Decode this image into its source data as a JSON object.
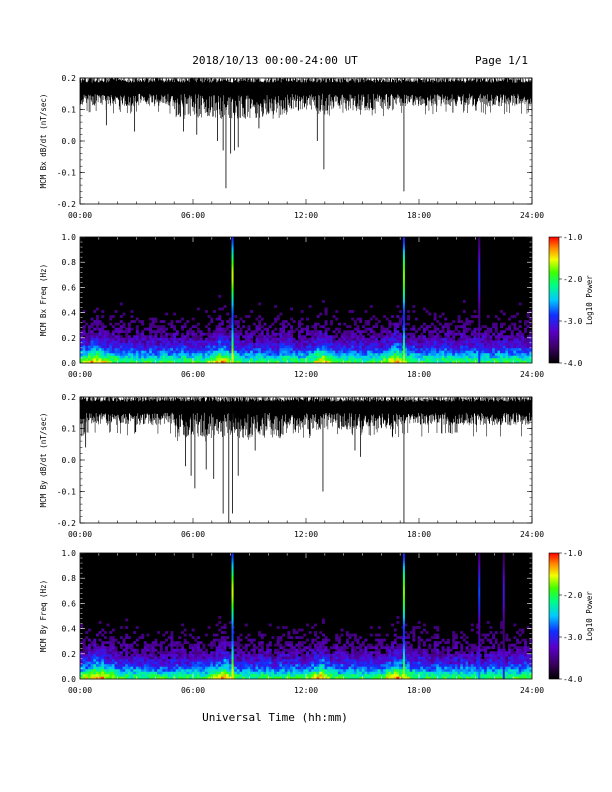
{
  "header": {
    "title": "2018/10/13  00:00-24:00 UT",
    "page": "Page 1/1"
  },
  "xlabel": "Universal Time (hh:mm)",
  "colors": {
    "background": "#ffffff",
    "spectrogram_background": "#000000",
    "trace": "#000000"
  },
  "chart_data": [
    {
      "type": "line",
      "title": "",
      "ylabel": "MCM Bx dB/dt (nT/sec)",
      "xlim": [
        0,
        24
      ],
      "ylim": [
        -0.2,
        0.2
      ],
      "x_ticks": [
        "00:00",
        "06:00",
        "12:00",
        "18:00",
        "24:00"
      ],
      "y_ticks": [
        "0.2",
        "0.1",
        "0.0",
        "-0.1",
        "-0.2"
      ],
      "baseline": 0.165,
      "noise_floor": 0.1,
      "spikes": [
        {
          "x": 1.4,
          "y": 0.05
        },
        {
          "x": 2.9,
          "y": 0.03
        },
        {
          "x": 5.5,
          "y": 0.03
        },
        {
          "x": 6.2,
          "y": 0.02
        },
        {
          "x": 7.3,
          "y": 0.0
        },
        {
          "x": 7.6,
          "y": -0.03
        },
        {
          "x": 7.75,
          "y": -0.15
        },
        {
          "x": 8.0,
          "y": -0.04
        },
        {
          "x": 8.2,
          "y": -0.03
        },
        {
          "x": 8.4,
          "y": -0.02
        },
        {
          "x": 9.5,
          "y": 0.04
        },
        {
          "x": 12.6,
          "y": 0.0
        },
        {
          "x": 12.95,
          "y": -0.09
        },
        {
          "x": 17.2,
          "y": -0.16
        },
        {
          "x": 19.8,
          "y": 0.09
        }
      ]
    },
    {
      "type": "heatmap",
      "title": "",
      "ylabel": "MCM Bx Freq (Hz)",
      "xlim": [
        0,
        24
      ],
      "ylim": [
        0.0,
        1.0
      ],
      "x_ticks": [
        "00:00",
        "06:00",
        "12:00",
        "18:00",
        "24:00"
      ],
      "y_ticks": [
        "1.0",
        "0.8",
        "0.6",
        "0.4",
        "0.2",
        "0.0"
      ],
      "colorbar_label": "Log10 Power",
      "colorbar_range": [
        -4.0,
        -1.0
      ],
      "colorbar_ticks": [
        "-1.0",
        "-2.0",
        "-3.0",
        "-4.0"
      ],
      "broadband_lines": [
        {
          "x": 8.1,
          "level": 0.85
        },
        {
          "x": 17.2,
          "level": 0.8
        },
        {
          "x": 21.2,
          "level": 0.4
        }
      ],
      "enhanced_regions": [
        {
          "x": 0.8,
          "width": 1.4,
          "fmax": 0.3
        },
        {
          "x": 7.5,
          "width": 1.0,
          "fmax": 0.35
        },
        {
          "x": 12.9,
          "width": 0.8,
          "fmax": 0.3
        },
        {
          "x": 16.8,
          "width": 1.0,
          "fmax": 0.3
        }
      ]
    },
    {
      "type": "line",
      "title": "",
      "ylabel": "MCM By dB/dt (nT/sec)",
      "xlim": [
        0,
        24
      ],
      "ylim": [
        -0.2,
        0.2
      ],
      "x_ticks": [
        "00:00",
        "06:00",
        "12:00",
        "18:00",
        "24:00"
      ],
      "y_ticks": [
        "0.2",
        "0.1",
        "0.0",
        "-0.1",
        "-0.2"
      ],
      "baseline": 0.165,
      "noise_floor": 0.09,
      "spikes": [
        {
          "x": 0.3,
          "y": 0.04
        },
        {
          "x": 5.6,
          "y": -0.02
        },
        {
          "x": 5.9,
          "y": -0.05
        },
        {
          "x": 6.1,
          "y": -0.09
        },
        {
          "x": 6.7,
          "y": -0.03
        },
        {
          "x": 7.1,
          "y": -0.06
        },
        {
          "x": 7.6,
          "y": -0.17
        },
        {
          "x": 7.9,
          "y": -0.2
        },
        {
          "x": 8.1,
          "y": -0.17
        },
        {
          "x": 8.4,
          "y": -0.05
        },
        {
          "x": 9.3,
          "y": 0.03
        },
        {
          "x": 12.9,
          "y": -0.1
        },
        {
          "x": 14.6,
          "y": 0.03
        },
        {
          "x": 14.9,
          "y": 0.01
        },
        {
          "x": 17.2,
          "y": -0.2
        }
      ]
    },
    {
      "type": "heatmap",
      "title": "",
      "ylabel": "MCM By Freq (Hz)",
      "xlim": [
        0,
        24
      ],
      "ylim": [
        0.0,
        1.0
      ],
      "x_ticks": [
        "00:00",
        "06:00",
        "12:00",
        "18:00",
        "24:00"
      ],
      "y_ticks": [
        "1.0",
        "0.8",
        "0.6",
        "0.4",
        "0.2",
        "0.0"
      ],
      "colorbar_label": "Log10 Power",
      "colorbar_range": [
        -4.0,
        -1.0
      ],
      "colorbar_ticks": [
        "-1.0",
        "-2.0",
        "-3.0",
        "-4.0"
      ],
      "broadband_lines": [
        {
          "x": 8.1,
          "level": 0.85
        },
        {
          "x": 17.2,
          "level": 0.8
        },
        {
          "x": 21.2,
          "level": 0.45
        },
        {
          "x": 22.5,
          "level": 0.35
        }
      ],
      "enhanced_regions": [
        {
          "x": 1.0,
          "width": 1.6,
          "fmax": 0.32
        },
        {
          "x": 7.6,
          "width": 1.0,
          "fmax": 0.38
        },
        {
          "x": 12.8,
          "width": 0.9,
          "fmax": 0.32
        },
        {
          "x": 16.8,
          "width": 1.2,
          "fmax": 0.32
        }
      ]
    }
  ]
}
